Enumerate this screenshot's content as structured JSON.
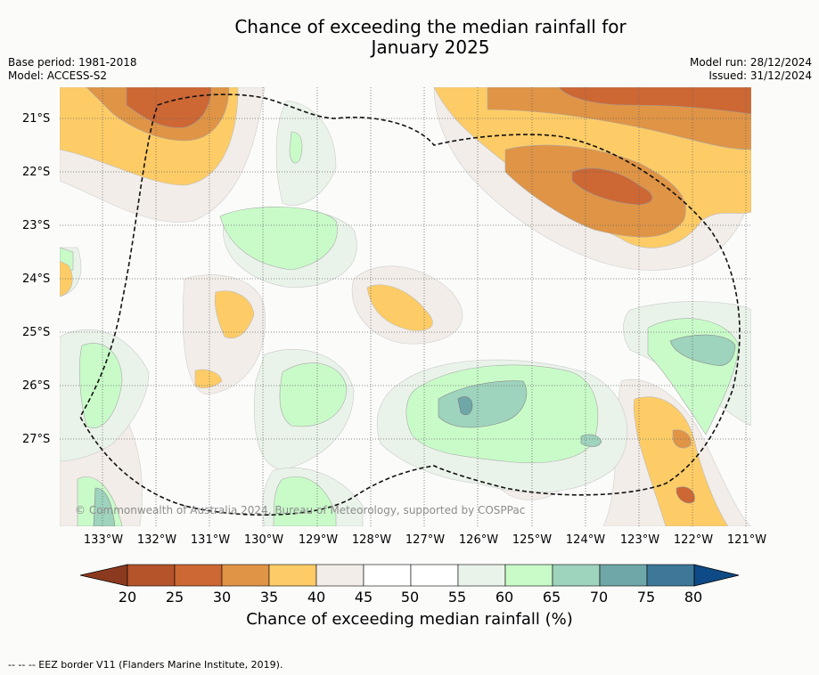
{
  "title": {
    "line1": "Chance of exceeding the median rainfall for",
    "line2": "January 2025"
  },
  "meta": {
    "base_period": "Base period: 1981-2018",
    "model": "Model: ACCESS-S2",
    "model_run": "Model run: 28/12/2024",
    "issued": "Issued: 31/12/2024"
  },
  "axes": {
    "lat_labels": [
      "21°S",
      "22°S",
      "23°S",
      "24°S",
      "25°S",
      "26°S",
      "27°S"
    ],
    "lon_labels": [
      "133°W",
      "132°W",
      "131°W",
      "130°W",
      "129°W",
      "128°W",
      "127°W",
      "126°W",
      "125°W",
      "124°W",
      "123°W",
      "122°W",
      "121°W"
    ]
  },
  "copyright": "© Commonwealth of Australia 2024, Bureau of Meteorology, supported by COSPPac",
  "colorbar": {
    "ticks": [
      "20",
      "25",
      "30",
      "35",
      "40",
      "45",
      "50",
      "55",
      "60",
      "65",
      "70",
      "75",
      "80"
    ],
    "colors": [
      "#8c3a1f",
      "#b5532b",
      "#cd6734",
      "#e09445",
      "#fecc66",
      "#f2ede8",
      "#ffffff",
      "#ffffff",
      "#eaf3ea",
      "#c9fbc9",
      "#9ed3bd",
      "#6fa7a9",
      "#3e7899",
      "#0e4a85"
    ],
    "title": "Chance of exceeding median rainfall (%)"
  },
  "footer": "--  --  -- EEZ border V11 (Flanders Marine Institute, 2019)."
}
